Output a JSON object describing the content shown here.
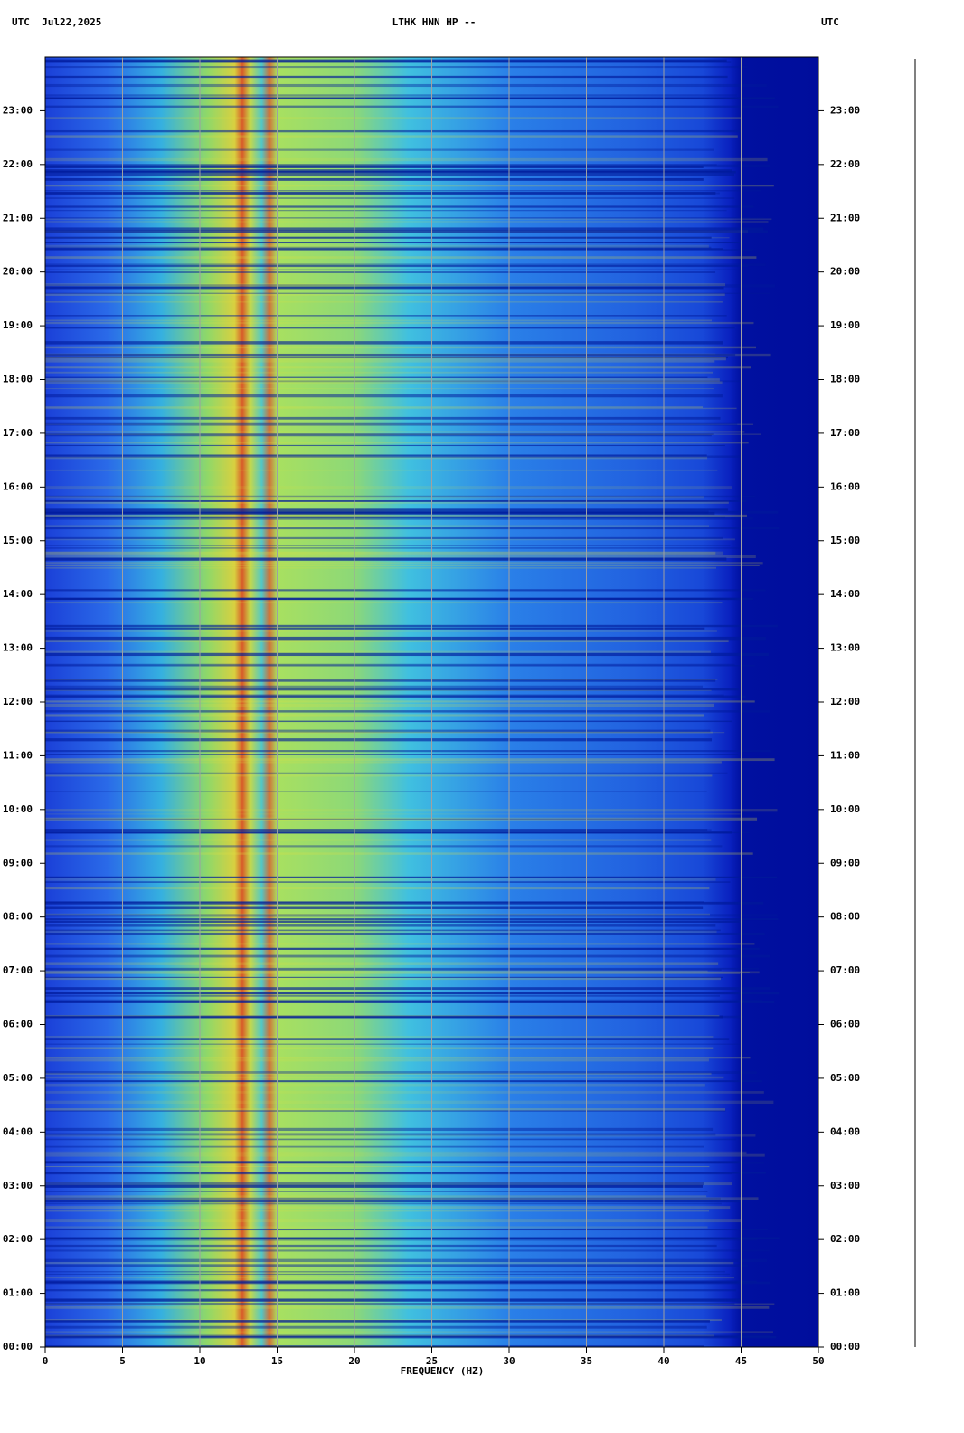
{
  "chart_data": {
    "type": "spectrogram",
    "title": "LTHK HNN HP --",
    "date_label": "UTC  Jul22,2025",
    "right_label": "UTC",
    "x_label": "FREQUENCY (HZ)",
    "xlim": [
      0,
      50
    ],
    "xticks": [
      0,
      5,
      10,
      15,
      20,
      25,
      30,
      35,
      40,
      45,
      50
    ],
    "ylim": [
      0,
      24
    ],
    "yticks": [
      {
        "value": 0,
        "label": "00:00"
      },
      {
        "value": 1,
        "label": "01:00"
      },
      {
        "value": 2,
        "label": "02:00"
      },
      {
        "value": 3,
        "label": "03:00"
      },
      {
        "value": 4,
        "label": "04:00"
      },
      {
        "value": 5,
        "label": "05:00"
      },
      {
        "value": 6,
        "label": "06:00"
      },
      {
        "value": 7,
        "label": "07:00"
      },
      {
        "value": 8,
        "label": "08:00"
      },
      {
        "value": 9,
        "label": "09:00"
      },
      {
        "value": 10,
        "label": "10:00"
      },
      {
        "value": 11,
        "label": "11:00"
      },
      {
        "value": 12,
        "label": "12:00"
      },
      {
        "value": 13,
        "label": "13:00"
      },
      {
        "value": 14,
        "label": "14:00"
      },
      {
        "value": 15,
        "label": "15:00"
      },
      {
        "value": 16,
        "label": "16:00"
      },
      {
        "value": 17,
        "label": "17:00"
      },
      {
        "value": 18,
        "label": "18:00"
      },
      {
        "value": 19,
        "label": "19:00"
      },
      {
        "value": 20,
        "label": "20:00"
      },
      {
        "value": 21,
        "label": "21:00"
      },
      {
        "value": 22,
        "label": "22:00"
      },
      {
        "value": 23,
        "label": "23:00"
      }
    ],
    "xgrid": true,
    "grid_color": "#a0a0a0"
  }
}
